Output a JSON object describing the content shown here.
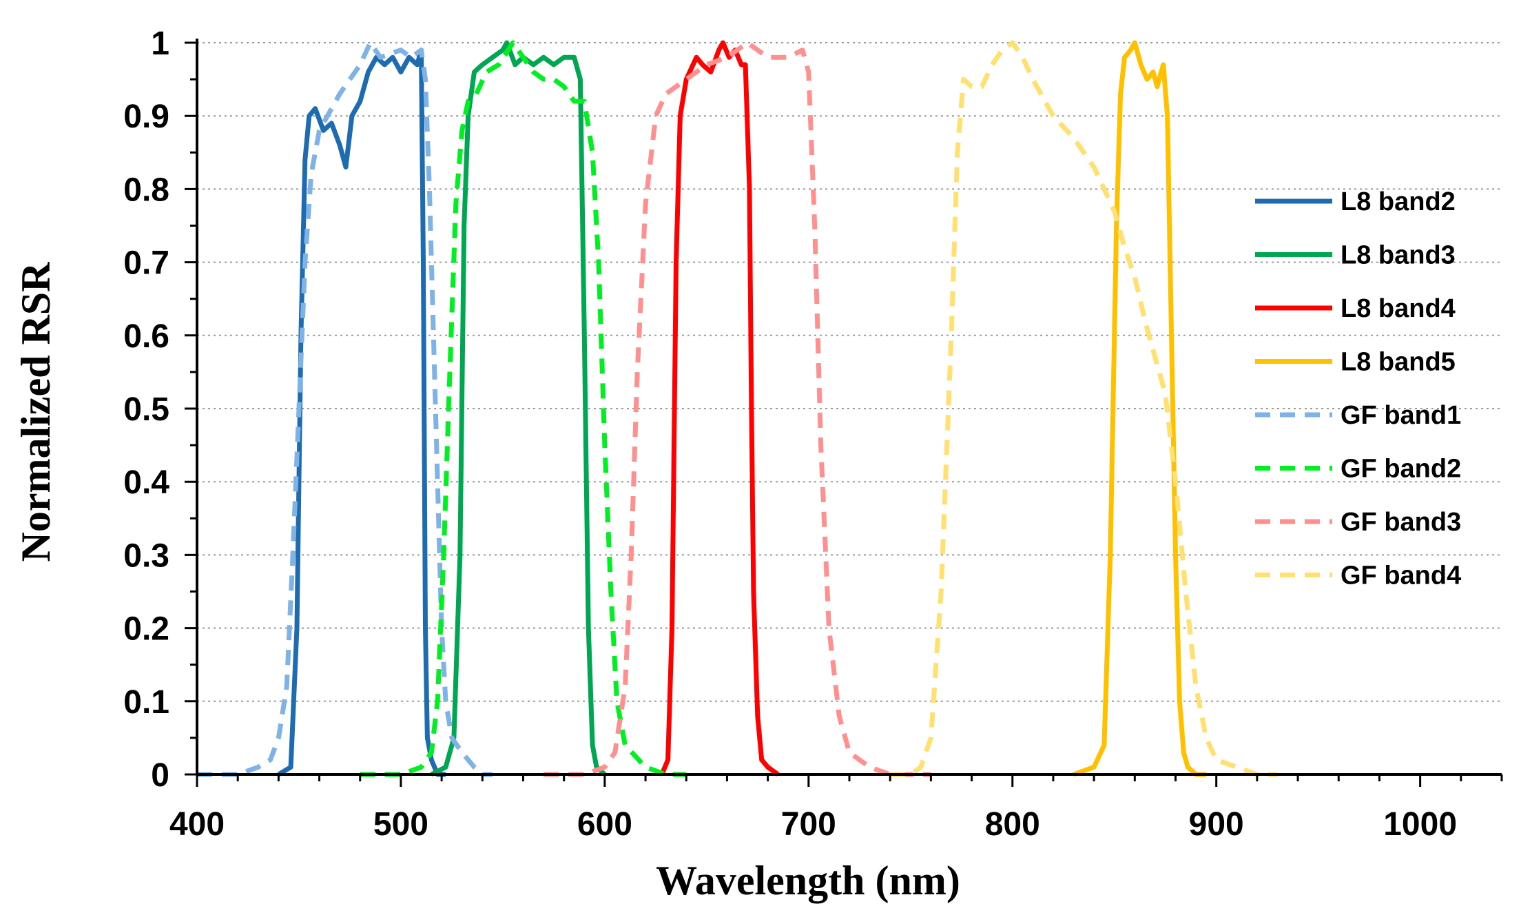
{
  "chart_data": {
    "type": "line",
    "title": "",
    "xlabel": "Wavelength (nm)",
    "ylabel": "Normalized RSR",
    "xlim": [
      400,
      1040
    ],
    "ylim": [
      0,
      1
    ],
    "x_ticks": [
      400,
      500,
      600,
      700,
      800,
      900,
      1000
    ],
    "x_tick_labels": [
      "400",
      "500",
      "600",
      "700",
      "800",
      "900",
      "1000"
    ],
    "y_ticks": [
      0,
      0.1,
      0.2,
      0.3,
      0.4,
      0.5,
      0.6,
      0.7,
      0.8,
      0.9,
      1
    ],
    "y_tick_labels": [
      "0",
      "0.1",
      "0.2",
      "0.3",
      "0.4",
      "0.5",
      "0.6",
      "0.7",
      "0.8",
      "0.9",
      "1"
    ],
    "y_grid": true,
    "legend_position": "right",
    "series": [
      {
        "name": "L8 band2",
        "color": "#1f6bb0",
        "dash": "solid",
        "x": [
          440,
          446,
          449,
          451,
          453,
          455,
          458,
          462,
          466,
          470,
          473,
          476,
          480,
          484,
          488,
          492,
          496,
          500,
          504,
          508,
          510,
          511,
          512,
          513,
          515,
          518,
          522
        ],
        "y": [
          0,
          0.01,
          0.2,
          0.6,
          0.84,
          0.9,
          0.91,
          0.88,
          0.89,
          0.86,
          0.83,
          0.9,
          0.92,
          0.96,
          0.98,
          0.97,
          0.98,
          0.96,
          0.98,
          0.97,
          0.99,
          0.7,
          0.2,
          0.05,
          0.02,
          0.0,
          0
        ]
      },
      {
        "name": "L8 band3",
        "color": "#00a651",
        "dash": "solid",
        "x": [
          515,
          522,
          526,
          529,
          531,
          533,
          536,
          540,
          545,
          550,
          552,
          556,
          560,
          565,
          570,
          575,
          580,
          585,
          588,
          590,
          592,
          594,
          596,
          600
        ],
        "y": [
          0,
          0.01,
          0.05,
          0.3,
          0.75,
          0.9,
          0.96,
          0.97,
          0.98,
          0.99,
          1.0,
          0.97,
          0.98,
          0.97,
          0.98,
          0.97,
          0.98,
          0.98,
          0.95,
          0.6,
          0.2,
          0.04,
          0.01,
          0
        ]
      },
      {
        "name": "L8 band4",
        "color": "#ff0000",
        "dash": "solid",
        "x": [
          628,
          631,
          633,
          635,
          637,
          640,
          645,
          648,
          652,
          656,
          658,
          661,
          664,
          667,
          669,
          671,
          672,
          673,
          675,
          677,
          680,
          685
        ],
        "y": [
          0,
          0.02,
          0.2,
          0.7,
          0.9,
          0.95,
          0.98,
          0.97,
          0.96,
          0.99,
          1.0,
          0.98,
          0.99,
          0.97,
          0.97,
          0.8,
          0.5,
          0.25,
          0.08,
          0.02,
          0.01,
          0
        ]
      },
      {
        "name": "L8 band5",
        "color": "#ffc000",
        "dash": "solid",
        "x": [
          830,
          840,
          845,
          848,
          851,
          853,
          855,
          858,
          860,
          863,
          866,
          869,
          871,
          874,
          876,
          878,
          880,
          882,
          884,
          886,
          890,
          895
        ],
        "y": [
          0,
          0.01,
          0.04,
          0.3,
          0.75,
          0.93,
          0.98,
          0.99,
          1.0,
          0.97,
          0.95,
          0.96,
          0.94,
          0.97,
          0.9,
          0.6,
          0.3,
          0.1,
          0.03,
          0.01,
          0,
          0
        ]
      },
      {
        "name": "GF band1",
        "color": "#7fb2e5",
        "dash": "dashed",
        "x": [
          400,
          420,
          430,
          436,
          440,
          444,
          447,
          450,
          453,
          456,
          460,
          470,
          480,
          485,
          490,
          500,
          505,
          510,
          512,
          514,
          516,
          518,
          520,
          522,
          525,
          530,
          536,
          540,
          545
        ],
        "y": [
          0,
          0,
          0.01,
          0.02,
          0.05,
          0.12,
          0.3,
          0.5,
          0.7,
          0.82,
          0.88,
          0.93,
          0.97,
          1.0,
          0.98,
          0.99,
          0.98,
          0.99,
          0.95,
          0.8,
          0.6,
          0.4,
          0.2,
          0.1,
          0.05,
          0.03,
          0.01,
          0,
          0
        ]
      },
      {
        "name": "GF band2",
        "color": "#00ee22",
        "dash": "dashed",
        "x": [
          480,
          500,
          510,
          515,
          518,
          521,
          524,
          527,
          530,
          533,
          537,
          542,
          548,
          555,
          560,
          565,
          570,
          575,
          580,
          585,
          590,
          594,
          597,
          600,
          603,
          606,
          610,
          620,
          630,
          640
        ],
        "y": [
          0,
          0,
          0.01,
          0.03,
          0.1,
          0.3,
          0.55,
          0.78,
          0.88,
          0.92,
          0.93,
          0.96,
          0.97,
          1.0,
          0.98,
          0.96,
          0.95,
          0.95,
          0.94,
          0.92,
          0.92,
          0.85,
          0.7,
          0.45,
          0.25,
          0.1,
          0.04,
          0.01,
          0,
          0
        ]
      },
      {
        "name": "GF band3",
        "color": "#ff9090",
        "dash": "dashed",
        "x": [
          570,
          590,
          600,
          605,
          610,
          613,
          616,
          620,
          625,
          630,
          640,
          650,
          660,
          670,
          680,
          690,
          697,
          700,
          703,
          706,
          710,
          715,
          720,
          730,
          740,
          750,
          760
        ],
        "y": [
          0,
          0,
          0.01,
          0.03,
          0.12,
          0.3,
          0.55,
          0.78,
          0.9,
          0.93,
          0.95,
          0.97,
          0.98,
          1.0,
          0.98,
          0.98,
          0.99,
          0.96,
          0.75,
          0.45,
          0.2,
          0.08,
          0.03,
          0.01,
          0,
          0,
          0
        ]
      },
      {
        "name": "GF band4",
        "color": "#ffe070",
        "dash": "dashed",
        "x": [
          740,
          750,
          755,
          760,
          765,
          770,
          773,
          776,
          780,
          785,
          790,
          795,
          800,
          805,
          810,
          820,
          830,
          840,
          845,
          850,
          855,
          860,
          865,
          870,
          875,
          880,
          885,
          890,
          895,
          900,
          910,
          920,
          930
        ],
        "y": [
          0,
          0,
          0.01,
          0.05,
          0.25,
          0.6,
          0.85,
          0.95,
          0.94,
          0.94,
          0.97,
          0.99,
          1.0,
          0.98,
          0.95,
          0.9,
          0.87,
          0.83,
          0.8,
          0.77,
          0.72,
          0.68,
          0.62,
          0.57,
          0.52,
          0.4,
          0.25,
          0.12,
          0.05,
          0.02,
          0.01,
          0,
          0
        ]
      }
    ]
  }
}
